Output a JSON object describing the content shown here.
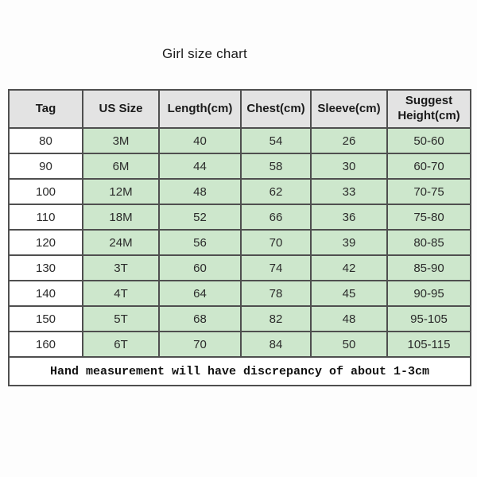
{
  "page": {
    "background_color": "#fdfdfd"
  },
  "colors": {
    "header_bg": "#e3e3e3",
    "cell_green": "#cde7cc",
    "cell_white": "#ffffff",
    "border": "#4f4f4f",
    "text": "#2b2b2b"
  },
  "chart_data": {
    "type": "table",
    "title": "Girl size chart",
    "columns": [
      "Tag",
      "US Size",
      "Length(cm)",
      "Chest(cm)",
      "Sleeve(cm)",
      "Suggest Height(cm)"
    ],
    "rows": [
      [
        "80",
        "3M",
        "40",
        "54",
        "26",
        "50-60"
      ],
      [
        "90",
        "6M",
        "44",
        "58",
        "30",
        "60-70"
      ],
      [
        "100",
        "12M",
        "48",
        "62",
        "33",
        "70-75"
      ],
      [
        "110",
        "18M",
        "52",
        "66",
        "36",
        "75-80"
      ],
      [
        "120",
        "24M",
        "56",
        "70",
        "39",
        "80-85"
      ],
      [
        "130",
        "3T",
        "60",
        "74",
        "42",
        "85-90"
      ],
      [
        "140",
        "4T",
        "64",
        "78",
        "45",
        "90-95"
      ],
      [
        "150",
        "5T",
        "68",
        "82",
        "48",
        "95-105"
      ],
      [
        "160",
        "6T",
        "70",
        "84",
        "50",
        "105-115"
      ]
    ],
    "note": "Hand measurement will have discrepancy of about 1-3cm"
  }
}
